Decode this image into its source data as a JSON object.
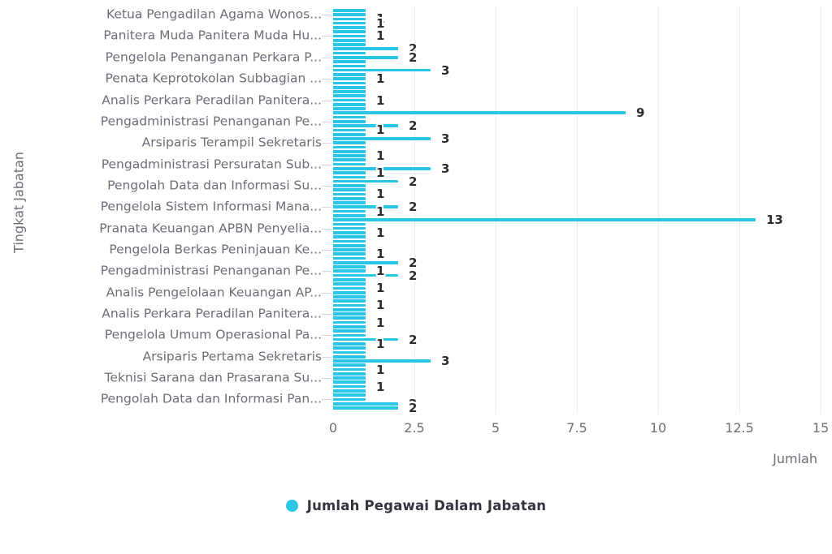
{
  "chart_data": {
    "type": "bar",
    "orientation": "horizontal",
    "series_name": "Jumlah Pegawai Dalam Jabatan",
    "xlabel": "Jumlah",
    "ylabel": "Tingkat Jabatan",
    "xlim": [
      0,
      15
    ],
    "xticks": [
      0,
      2.5,
      5,
      7.5,
      10,
      12.5,
      15
    ],
    "xtick_labels": [
      "0",
      "2.5",
      "5",
      "7.5",
      "10",
      "12.5",
      "15"
    ],
    "grid": "vertical-lines",
    "legend_position": "bottom",
    "bar_count": 94,
    "default_value": 1,
    "special_values": {
      "9": 2,
      "11": 2,
      "14": 3,
      "24": 9,
      "27": 2,
      "30": 3,
      "37": 3,
      "40": 2,
      "46": 2,
      "49": 13,
      "59": 2,
      "62": 2,
      "77": 2,
      "82": 3,
      "92": 2,
      "93": 2
    },
    "one_value_label_indices": [
      2,
      3,
      6,
      16,
      21,
      28,
      34,
      38,
      43,
      47,
      52,
      57,
      61,
      65,
      69,
      73,
      78,
      84,
      88
    ],
    "visible_axis_labels": [
      {
        "index": 1,
        "label": "Ketua Pengadilan Agama Wonos..."
      },
      {
        "index": 6,
        "label": "Panitera Muda Panitera Muda Hu..."
      },
      {
        "index": 11,
        "label": "Pengelola Penanganan Perkara P..."
      },
      {
        "index": 16,
        "label": "Penata Keprotokolan Subbagian ..."
      },
      {
        "index": 21,
        "label": "Analis Perkara Peradilan Panitera..."
      },
      {
        "index": 26,
        "label": "Pengadministrasi Penanganan Pe..."
      },
      {
        "index": 31,
        "label": "Arsiparis Terampil Sekretaris"
      },
      {
        "index": 36,
        "label": "Pengadministrasi Persuratan Sub..."
      },
      {
        "index": 41,
        "label": "Pengolah Data dan Informasi Su..."
      },
      {
        "index": 46,
        "label": "Pengelola Sistem Informasi Mana..."
      },
      {
        "index": 51,
        "label": "Pranata Keuangan APBN Penyelia..."
      },
      {
        "index": 56,
        "label": "Pengelola Berkas Peninjauan Ke..."
      },
      {
        "index": 61,
        "label": "Pengadministrasi Penanganan Pe..."
      },
      {
        "index": 66,
        "label": "Analis Pengelolaan Keuangan AP..."
      },
      {
        "index": 71,
        "label": "Analis Perkara Peradilan Panitera..."
      },
      {
        "index": 76,
        "label": "Pengelola Umum Operasional Pa..."
      },
      {
        "index": 81,
        "label": "Arsiparis Pertama Sekretaris"
      },
      {
        "index": 86,
        "label": "Teknisi Sarana dan Prasarana Su..."
      },
      {
        "index": 91,
        "label": "Pengolah Data dan Informasi Pan..."
      }
    ],
    "colors": {
      "bar": "#29c6e8",
      "grid": "#ececec",
      "axis_tick": "#d4d5e8",
      "axis_text": "#6d6e78",
      "value_label_text": "#2d2d31",
      "legend_text": "#33343d"
    }
  },
  "legend": {
    "label": "Jumlah Pegawai Dalam Jabatan"
  },
  "axes": {
    "x_title": "Jumlah",
    "y_title": "Tingkat Jabatan"
  }
}
